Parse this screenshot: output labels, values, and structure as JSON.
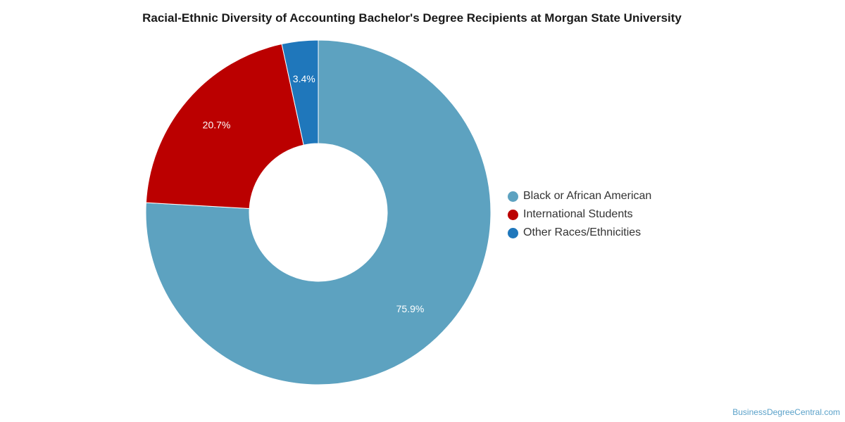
{
  "chart_data": {
    "type": "pie",
    "title": "Racial-Ethnic Diversity of Accounting Bachelor's Degree Recipients at Morgan State University",
    "donut": true,
    "categories": [
      "Black or African American",
      "International Students",
      "Other Races/Ethnicities"
    ],
    "values": [
      75.9,
      20.7,
      3.4
    ],
    "value_labels": [
      "75.9%",
      "20.7%",
      "3.4%"
    ],
    "colors": [
      "#5da2c0",
      "#bb0000",
      "#1f77bb"
    ],
    "legend_position": "right"
  },
  "credit": "BusinessDegreeCentral.com"
}
